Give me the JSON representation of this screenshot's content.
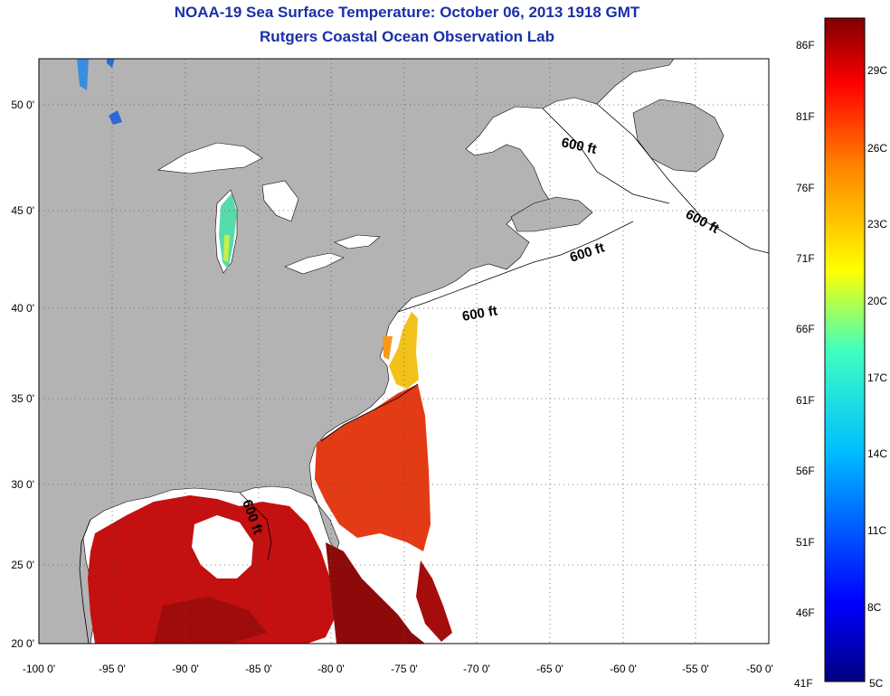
{
  "header": {
    "title": "NOAA-19 Sea Surface Temperature:  October 06, 2013 1918 GMT",
    "subtitle": "Rutgers Coastal Ocean Observation Lab"
  },
  "map": {
    "lon_range": [
      -100,
      -50
    ],
    "lat_range": [
      20,
      52
    ],
    "lon_ticks": [
      "-100 0'",
      "-95 0'",
      "-90 0'",
      "-85 0'",
      "-80 0'",
      "-75 0'",
      "-70 0'",
      "-65 0'",
      "-60 0'",
      "-55 0'",
      "-50 0'"
    ],
    "lat_ticks": [
      "20 0'",
      "25 0'",
      "30 0'",
      "35 0'",
      "40 0'",
      "45 0'",
      "50 0'"
    ],
    "isobath_labels": [
      "600 ft",
      "600 ft",
      "600 ft",
      "600 ft",
      "600 ft"
    ],
    "colors": {
      "land": "#b3b3b3",
      "no_data": "#ffffff",
      "grid": "#555555"
    }
  },
  "colorbar": {
    "fahrenheit": [
      "86F",
      "81F",
      "76F",
      "71F",
      "66F",
      "61F",
      "56F",
      "51F",
      "46F",
      "41F"
    ],
    "celsius": [
      "29C",
      "26C",
      "23C",
      "20C",
      "17C",
      "14C",
      "11C",
      "8C",
      "5C"
    ],
    "colors": [
      "#800000",
      "#ff0000",
      "#ff8000",
      "#ffff00",
      "#80ff80",
      "#00ffff",
      "#0080ff",
      "#0000ff",
      "#000080"
    ]
  }
}
